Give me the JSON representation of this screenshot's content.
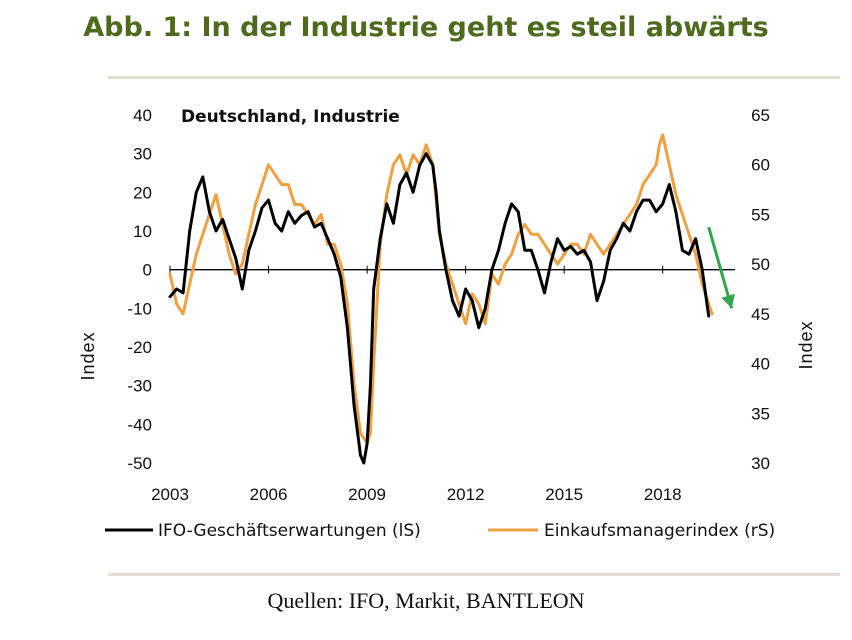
{
  "title": "Abb. 1: In der Industrie geht es steil abwärts",
  "source": "Quellen: IFO, Markit, BANTLEON",
  "chart_data": {
    "type": "line",
    "title": "Deutschland,  Industrie",
    "ylabel_left": "Index",
    "ylabel_right": "Index",
    "ylim_left": [
      -50,
      40
    ],
    "ylim_right": [
      30,
      65
    ],
    "yticks_left": [
      "40",
      "30",
      "20",
      "10",
      "0",
      "-10",
      "-20",
      "-30",
      "-40",
      "-50"
    ],
    "yticks_right": [
      "65",
      "60",
      "55",
      "50",
      "45",
      "40",
      "35",
      "30"
    ],
    "xlim": [
      2003,
      2020.2
    ],
    "xticks": [
      "2003",
      "2006",
      "2009",
      "2012",
      "2015",
      "2018"
    ],
    "trend_arrow": {
      "color": "#2ea84a",
      "from": [
        2019.4,
        11
      ],
      "to": [
        2020.1,
        -10
      ]
    },
    "series": [
      {
        "name": "IFO-Geschäftserwartungen (lS)",
        "axis": "left",
        "color": "#000000",
        "x": [
          2003.0,
          2003.2,
          2003.4,
          2003.6,
          2003.8,
          2004.0,
          2004.2,
          2004.4,
          2004.6,
          2004.8,
          2005.0,
          2005.2,
          2005.4,
          2005.6,
          2005.8,
          2006.0,
          2006.2,
          2006.4,
          2006.6,
          2006.8,
          2007.0,
          2007.2,
          2007.4,
          2007.6,
          2007.8,
          2008.0,
          2008.2,
          2008.4,
          2008.6,
          2008.8,
          2008.9,
          2009.0,
          2009.1,
          2009.2,
          2009.4,
          2009.6,
          2009.8,
          2010.0,
          2010.2,
          2010.4,
          2010.6,
          2010.8,
          2011.0,
          2011.1,
          2011.2,
          2011.4,
          2011.6,
          2011.8,
          2012.0,
          2012.2,
          2012.4,
          2012.6,
          2012.8,
          2013.0,
          2013.2,
          2013.4,
          2013.6,
          2013.8,
          2014.0,
          2014.2,
          2014.4,
          2014.6,
          2014.8,
          2015.0,
          2015.2,
          2015.4,
          2015.6,
          2015.8,
          2016.0,
          2016.2,
          2016.4,
          2016.6,
          2016.8,
          2017.0,
          2017.2,
          2017.4,
          2017.6,
          2017.8,
          2018.0,
          2018.2,
          2018.4,
          2018.6,
          2018.8,
          2019.0,
          2019.2,
          2019.4
        ],
        "y": [
          -7,
          -5,
          -6,
          10,
          20,
          24,
          15,
          10,
          13,
          8,
          3,
          -5,
          5,
          10,
          16,
          18,
          12,
          10,
          15,
          12,
          14,
          15,
          11,
          12,
          8,
          4,
          -2,
          -15,
          -35,
          -48,
          -50,
          -45,
          -30,
          -5,
          8,
          17,
          12,
          22,
          25,
          20,
          27,
          30,
          27,
          20,
          10,
          0,
          -8,
          -12,
          -5,
          -8,
          -15,
          -10,
          0,
          5,
          12,
          17,
          15,
          5,
          5,
          0,
          -6,
          2,
          8,
          5,
          6,
          4,
          5,
          2,
          -8,
          -3,
          5,
          8,
          12,
          10,
          15,
          18,
          18,
          15,
          17,
          22,
          15,
          5,
          4,
          8,
          0,
          -12
        ]
      },
      {
        "name": "Einkaufsmanagerindex (rS)",
        "axis": "right",
        "color": "#f0a040",
        "x": [
          2003.0,
          2003.2,
          2003.4,
          2003.6,
          2003.8,
          2004.0,
          2004.2,
          2004.4,
          2004.6,
          2004.8,
          2005.0,
          2005.2,
          2005.4,
          2005.6,
          2005.8,
          2006.0,
          2006.2,
          2006.4,
          2006.6,
          2006.8,
          2007.0,
          2007.2,
          2007.4,
          2007.6,
          2007.8,
          2008.0,
          2008.2,
          2008.4,
          2008.6,
          2008.8,
          2009.0,
          2009.1,
          2009.2,
          2009.4,
          2009.6,
          2009.8,
          2010.0,
          2010.2,
          2010.4,
          2010.6,
          2010.8,
          2011.0,
          2011.2,
          2011.4,
          2011.6,
          2011.8,
          2012.0,
          2012.2,
          2012.4,
          2012.6,
          2012.8,
          2013.0,
          2013.2,
          2013.4,
          2013.6,
          2013.8,
          2014.0,
          2014.2,
          2014.4,
          2014.6,
          2014.8,
          2015.0,
          2015.2,
          2015.4,
          2015.6,
          2015.8,
          2016.0,
          2016.2,
          2016.4,
          2016.6,
          2016.8,
          2017.0,
          2017.2,
          2017.4,
          2017.6,
          2017.8,
          2017.9,
          2018.0,
          2018.2,
          2018.4,
          2018.6,
          2018.8,
          2019.0,
          2019.2,
          2019.4,
          2019.5
        ],
        "y": [
          49,
          46,
          45,
          48,
          51,
          53,
          55,
          57,
          54,
          51,
          49,
          50,
          53,
          56,
          58,
          60,
          59,
          58,
          58,
          56,
          56,
          55,
          54,
          55,
          52,
          52,
          50,
          46,
          38,
          33,
          32,
          33,
          40,
          52,
          57,
          60,
          61,
          59,
          61,
          60,
          62,
          60,
          53,
          50,
          48,
          46,
          44,
          47,
          46,
          44,
          49,
          48,
          50,
          51,
          53,
          54,
          53,
          53,
          52,
          51,
          50,
          51,
          52,
          52,
          51,
          53,
          52,
          51,
          52,
          53,
          54,
          55,
          56,
          58,
          59,
          60,
          62,
          63,
          60,
          57,
          55,
          53,
          51,
          48,
          46,
          45
        ]
      }
    ]
  }
}
